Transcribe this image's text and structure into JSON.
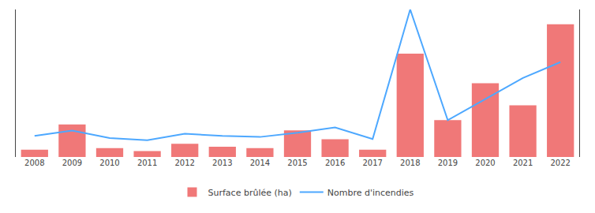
{
  "chart_data": {
    "type": "bar",
    "categories": [
      "2008",
      "2009",
      "2010",
      "2011",
      "2012",
      "2013",
      "2014",
      "2015",
      "2016",
      "2017",
      "2018",
      "2019",
      "2020",
      "2021",
      "2022"
    ],
    "series": [
      {
        "name": "Surface brûlée (ha)",
        "type": "bar",
        "color": "#f07878",
        "values": [
          500,
          2200,
          600,
          400,
          900,
          700,
          600,
          1800,
          1200,
          500,
          7000,
          2500,
          5000,
          3500,
          9000
        ]
      },
      {
        "name": "Nombre d'incendies",
        "type": "line",
        "color": "#4da8ff",
        "axis": "y2",
        "values": [
          2000,
          2500,
          1800,
          1600,
          2200,
          2000,
          1900,
          2300,
          2800,
          1700,
          14000,
          3500,
          5500,
          7500,
          9000
        ]
      }
    ],
    "ylim": [
      0,
      10000
    ],
    "y2lim": [
      0,
      14000
    ],
    "grid": false,
    "legend": "bottom",
    "tick_labels": "x"
  }
}
